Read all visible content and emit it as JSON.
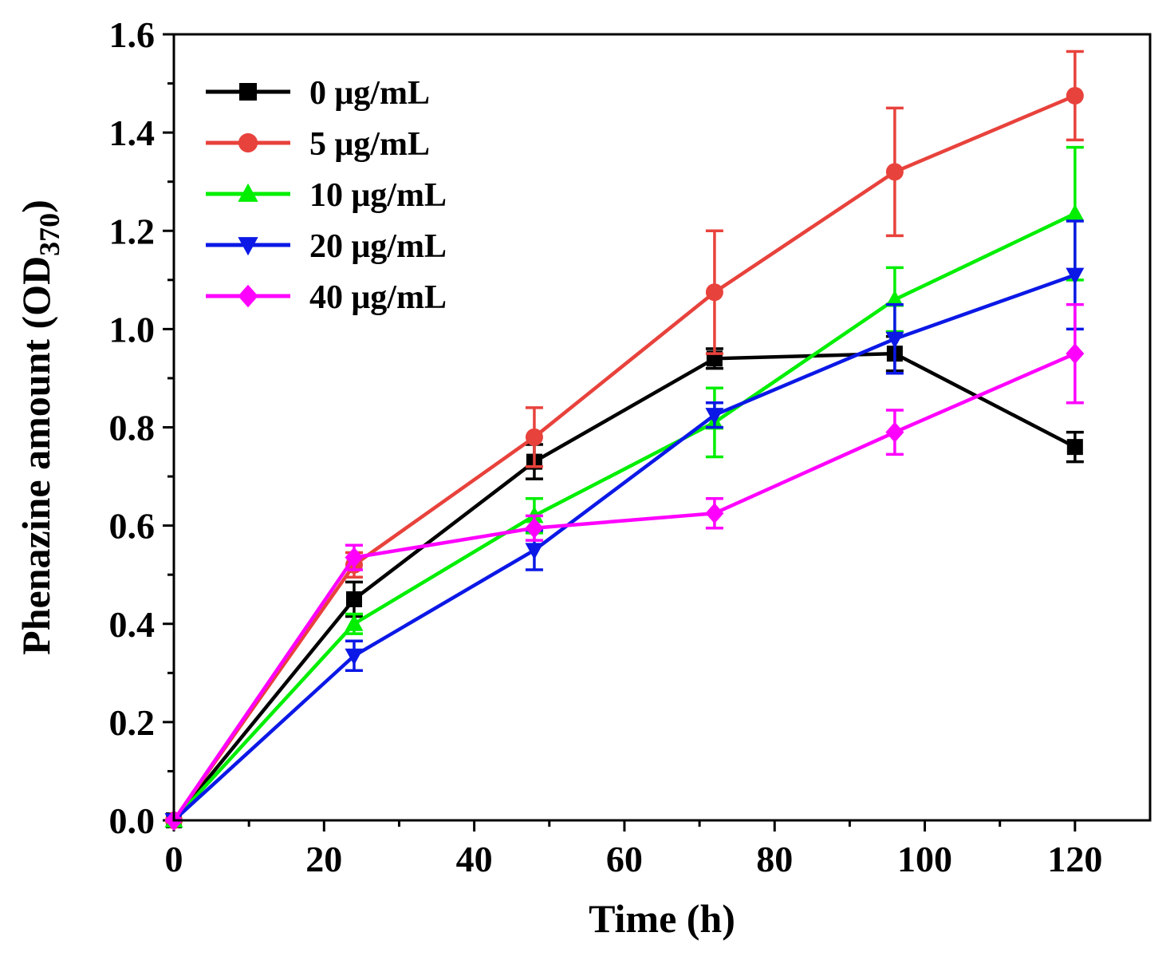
{
  "chart_data": {
    "type": "line",
    "title": "",
    "xlabel": "Time (h)",
    "ylabel": {
      "main": "Phenazine amount (OD",
      "sub": "370",
      "close": ")"
    },
    "xlim": [
      0,
      130
    ],
    "ylim": [
      0,
      1.6
    ],
    "xticks": [
      0,
      20,
      40,
      60,
      80,
      100,
      120
    ],
    "xtick_labels": [
      "0",
      "20",
      "40",
      "60",
      "80",
      "100",
      "120"
    ],
    "yticks": [
      0,
      0.2,
      0.4,
      0.6,
      0.8,
      1.0,
      1.2,
      1.4,
      1.6
    ],
    "ytick_labels": [
      "0.0",
      "0.2",
      "0.4",
      "0.6",
      "0.8",
      "1.0",
      "1.2",
      "1.4",
      "1.6"
    ],
    "x": [
      0,
      24,
      48,
      72,
      96,
      120
    ],
    "legend_position": "top-left",
    "series": [
      {
        "name": "0 μg/mL",
        "color": "#000000",
        "marker": "square",
        "values": [
          0,
          0.45,
          0.73,
          0.94,
          0.95,
          0.76
        ],
        "errors": [
          0,
          0.035,
          0.035,
          0.02,
          0.035,
          0.03
        ]
      },
      {
        "name": "5 μg/mL",
        "color": "#e8423c",
        "marker": "circle",
        "values": [
          0,
          0.52,
          0.78,
          1.075,
          1.32,
          1.475
        ],
        "errors": [
          0,
          0.025,
          0.06,
          0.125,
          0.13,
          0.09
        ]
      },
      {
        "name": "10 μg/mL",
        "color": "#00ee00",
        "marker": "triangle-up",
        "values": [
          0,
          0.4,
          0.62,
          0.81,
          1.06,
          1.235
        ],
        "errors": [
          0,
          0.02,
          0.035,
          0.07,
          0.065,
          0.135
        ]
      },
      {
        "name": "20 μg/mL",
        "color": "#0b18e6",
        "marker": "triangle-down",
        "values": [
          0,
          0.335,
          0.55,
          0.825,
          0.98,
          1.11
        ],
        "errors": [
          0,
          0.03,
          0.04,
          0.025,
          0.07,
          0.11
        ]
      },
      {
        "name": "40 μg/mL",
        "color": "#ff00ff",
        "marker": "diamond",
        "values": [
          0,
          0.535,
          0.595,
          0.625,
          0.79,
          0.95
        ],
        "errors": [
          0,
          0.025,
          0.025,
          0.03,
          0.045,
          0.1
        ]
      }
    ]
  }
}
